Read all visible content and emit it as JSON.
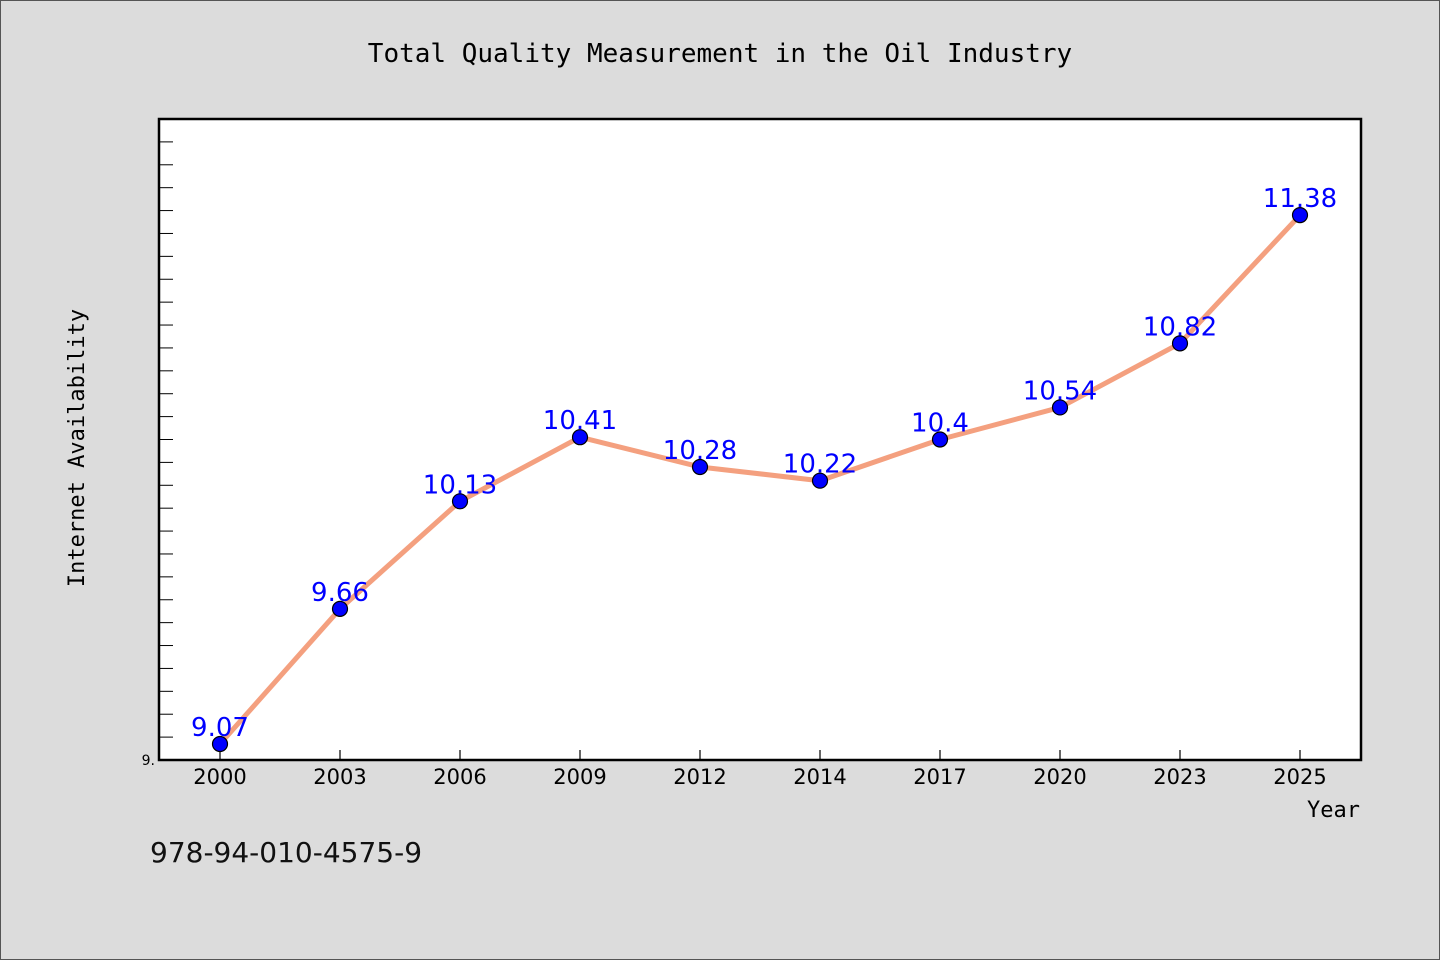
{
  "chart_data": {
    "type": "line",
    "title": "Total Quality Measurement in the Oil Industry",
    "xlabel": "Year",
    "ylabel": "Internet Availability",
    "categories": [
      "2000",
      "2003",
      "2006",
      "2009",
      "2012",
      "2014",
      "2017",
      "2020",
      "2023",
      "2025"
    ],
    "series": [
      {
        "values": [
          9.07,
          9.66,
          10.13,
          10.41,
          10.28,
          10.22,
          10.4,
          10.54,
          10.82,
          11.38
        ]
      }
    ],
    "data_labels": [
      "9.07",
      "9.66",
      "10.13",
      "10.41",
      "10.28",
      "10.22",
      "10.4",
      "10.54",
      "10.82",
      "11.38"
    ],
    "y_tick_labels": [
      "9."
    ],
    "ylim": [
      9.0,
      11.8
    ],
    "y_minor_step": 0.1,
    "grid": false,
    "colors": {
      "line": "#f4a07f",
      "marker": "#0000ff",
      "marker_edge": "#000000",
      "label": "#0000ff",
      "plot_bg": "#ffffff",
      "page_bg": "#dcdcdc"
    }
  },
  "footer": {
    "code": "978-94-010-4575-9"
  }
}
